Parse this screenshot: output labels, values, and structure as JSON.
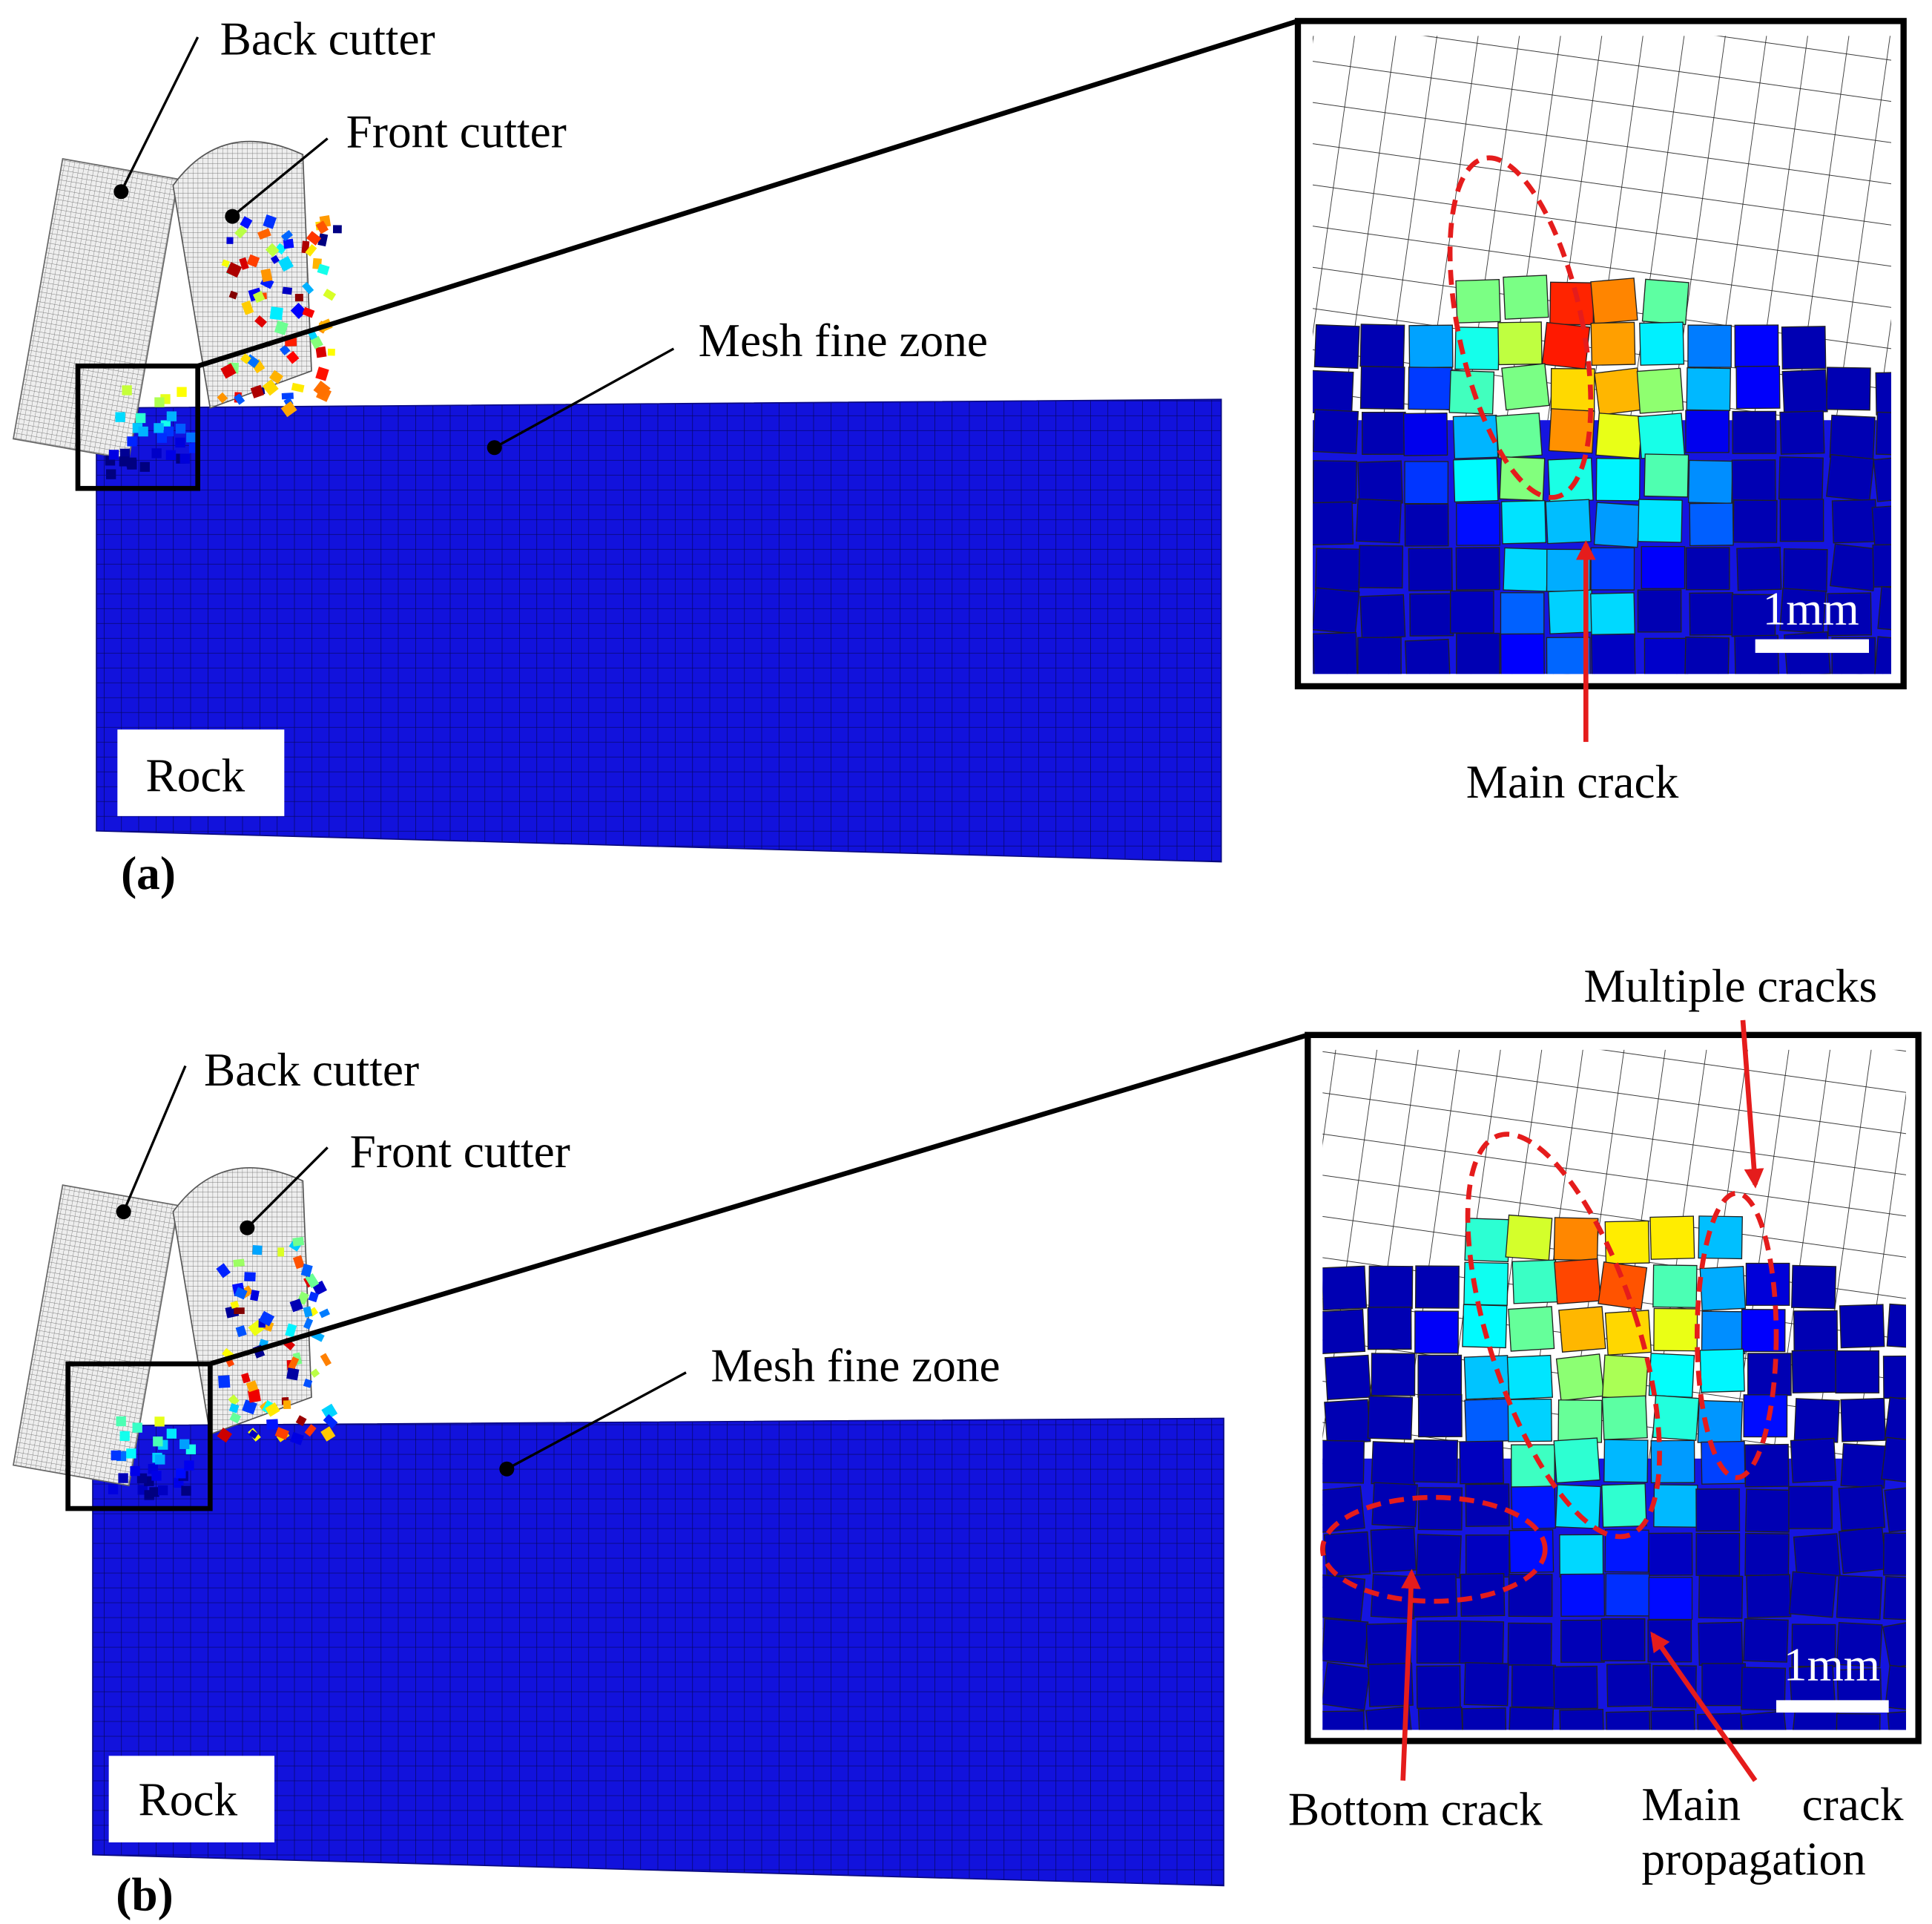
{
  "panels": [
    {
      "label": "(a)",
      "back_cutter": "Back cutter",
      "front_cutter": "Front cutter",
      "mesh_zone": "Mesh fine zone",
      "rock": "Rock",
      "scale_bar": "1mm",
      "cracks": [
        "Main crack"
      ]
    },
    {
      "label": "(b)",
      "back_cutter": "Back cutter",
      "front_cutter": "Front cutter",
      "mesh_zone": "Mesh fine zone",
      "rock": "Rock",
      "scale_bar": "1mm",
      "cracks": [
        "Multiple cracks",
        "Bottom crack",
        "Main crack propagation"
      ]
    }
  ]
}
